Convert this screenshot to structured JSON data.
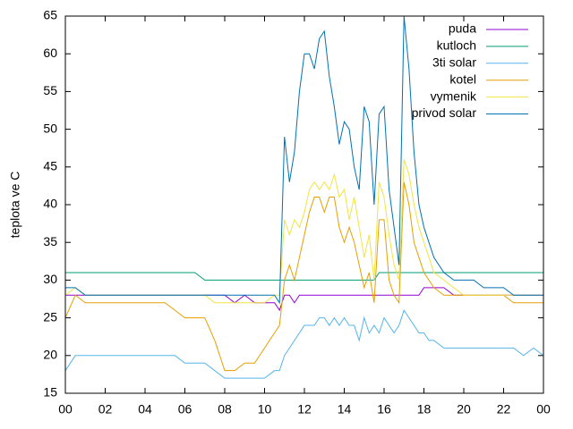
{
  "chart_data": {
    "type": "line",
    "ylabel": "teplota ve C",
    "x": [
      0,
      0.5,
      1,
      1.5,
      2,
      2.5,
      3,
      3.5,
      4,
      4.5,
      5,
      5.5,
      6,
      6.5,
      7,
      7.5,
      8,
      8.5,
      9,
      9.5,
      10,
      10.5,
      10.75,
      11,
      11.25,
      11.5,
      11.75,
      12,
      12.25,
      12.5,
      12.75,
      13,
      13.25,
      13.5,
      13.75,
      14,
      14.25,
      14.5,
      14.75,
      15,
      15.25,
      15.5,
      15.75,
      16,
      16.25,
      16.5,
      16.75,
      17,
      17.25,
      17.5,
      17.75,
      18,
      18.25,
      18.5,
      19,
      19.5,
      20,
      20.5,
      21,
      21.5,
      22,
      22.5,
      23,
      23.5,
      24
    ],
    "series": [
      {
        "name": "puda",
        "color": "#9400d3",
        "values": [
          28,
          28,
          28,
          28,
          28,
          28,
          28,
          28,
          28,
          28,
          28,
          28,
          28,
          28,
          28,
          28,
          28,
          27,
          28,
          27,
          27,
          27,
          26,
          28,
          28,
          27,
          28,
          28,
          28,
          28,
          28,
          28,
          28,
          28,
          28,
          28,
          28,
          28,
          28,
          28,
          28,
          28,
          28,
          28,
          28,
          28,
          28,
          28,
          28,
          28,
          28,
          29,
          29,
          29,
          29,
          28,
          28,
          28,
          28,
          28,
          28,
          28,
          28,
          28,
          28
        ]
      },
      {
        "name": "kutloch",
        "color": "#009e73",
        "values": [
          31,
          31,
          31,
          31,
          31,
          31,
          31,
          31,
          31,
          31,
          31,
          31,
          31,
          31,
          30,
          30,
          30,
          30,
          30,
          30,
          30,
          30,
          30,
          30,
          30,
          30,
          30,
          30,
          30,
          30,
          30,
          30,
          30,
          30,
          30,
          30,
          30,
          30,
          30,
          30,
          30,
          30,
          31,
          31,
          31,
          31,
          31,
          31,
          31,
          31,
          31,
          31,
          31,
          31,
          31,
          31,
          31,
          31,
          31,
          31,
          31,
          31,
          31,
          31,
          31
        ]
      },
      {
        "name": "3ti solar",
        "color": "#56b4e9",
        "values": [
          18,
          20,
          20,
          20,
          20,
          20,
          20,
          20,
          20,
          20,
          20,
          20,
          19,
          19,
          19,
          18,
          17,
          17,
          17,
          17,
          17,
          18,
          18,
          20,
          21,
          22,
          23,
          24,
          24,
          24,
          25,
          25,
          24,
          25,
          24,
          25,
          24,
          24,
          22,
          25,
          23,
          24,
          23,
          25,
          24,
          23,
          24,
          26,
          25,
          24,
          23,
          23,
          22,
          22,
          21,
          21,
          21,
          21,
          21,
          21,
          21,
          21,
          20,
          21,
          20
        ]
      },
      {
        "name": "kotel",
        "color": "#e69f00",
        "values": [
          25,
          28,
          27,
          27,
          27,
          27,
          27,
          27,
          27,
          27,
          27,
          26,
          25,
          25,
          25,
          22,
          18,
          18,
          19,
          19,
          21,
          23,
          24,
          30,
          32,
          30,
          33,
          36,
          39,
          41,
          41,
          39,
          41,
          41,
          37,
          35,
          37,
          35,
          32,
          29,
          31,
          27,
          38,
          38,
          30,
          28,
          27,
          43,
          40,
          35,
          33,
          31,
          30,
          29,
          28,
          28,
          28,
          28,
          28,
          28,
          28,
          27,
          27,
          27,
          27
        ]
      },
      {
        "name": "vymenik",
        "color": "#f0e442",
        "values": [
          28,
          29,
          28,
          28,
          28,
          28,
          28,
          28,
          28,
          28,
          28,
          28,
          28,
          28,
          28,
          27,
          27,
          27,
          27,
          27,
          27,
          28,
          28,
          38,
          36,
          38,
          37,
          39,
          42,
          43,
          42,
          43,
          42,
          44,
          41,
          42,
          38,
          41,
          37,
          33,
          36,
          30,
          43,
          41,
          36,
          32,
          30,
          46,
          44,
          40,
          37,
          35,
          33,
          31,
          30,
          29,
          28,
          28,
          28,
          28,
          28,
          28,
          28,
          28,
          28
        ]
      },
      {
        "name": "privod solar",
        "color": "#0072b2",
        "values": [
          29,
          29,
          28,
          28,
          28,
          28,
          28,
          28,
          28,
          28,
          28,
          28,
          28,
          28,
          28,
          28,
          28,
          28,
          28,
          28,
          28,
          28,
          27,
          49,
          43,
          47,
          55,
          60,
          60,
          58,
          62,
          63,
          57,
          53,
          48,
          51,
          50,
          45,
          42,
          53,
          51,
          40,
          52,
          53,
          42,
          37,
          32,
          65,
          58,
          47,
          40,
          37,
          35,
          33,
          31,
          30,
          30,
          30,
          29,
          29,
          29,
          28,
          28,
          28,
          28
        ]
      }
    ],
    "xlim": [
      0,
      24
    ],
    "xticks": [
      {
        "value": 0,
        "label": "00"
      },
      {
        "value": 2,
        "label": "02"
      },
      {
        "value": 4,
        "label": "04"
      },
      {
        "value": 6,
        "label": "06"
      },
      {
        "value": 8,
        "label": "08"
      },
      10,
      12,
      14,
      16,
      18,
      20,
      22,
      {
        "value": 24,
        "label": "00"
      }
    ],
    "ylim": [
      15,
      65
    ],
    "yticks": [
      15,
      20,
      25,
      30,
      35,
      40,
      45,
      50,
      55,
      60,
      65
    ],
    "legend": "top-right"
  }
}
